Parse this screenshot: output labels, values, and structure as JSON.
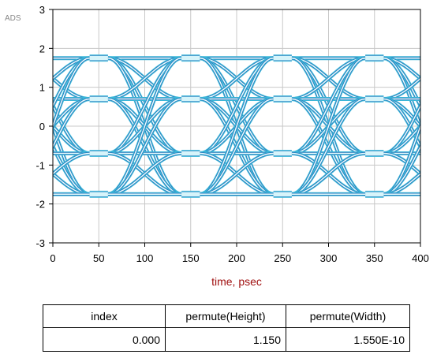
{
  "chart_data": {
    "type": "line",
    "title": "",
    "badge": "ADS",
    "xlabel": "time, psec",
    "ylabel": "",
    "xlim": [
      0,
      400
    ],
    "ylim": [
      -3,
      3
    ],
    "x_ticks": [
      "0",
      "50",
      "100",
      "150",
      "200",
      "250",
      "300",
      "350",
      "400"
    ],
    "y_ticks": [
      "3",
      "2",
      "1",
      "0",
      "-1",
      "-2",
      "-3"
    ],
    "grid": true,
    "legend": "none",
    "unit_interval_psec": 200,
    "crossing_times_psec": [
      0,
      100,
      200,
      300,
      400
    ],
    "eye_center_psec": [
      50,
      250
    ],
    "levels": [
      1.75,
      0.7,
      -0.7,
      -1.75
    ],
    "colors": {
      "trace": "#3ab7d8",
      "trace_dark": "#1a3aa0",
      "highlight": "#e8ffff",
      "grid": "#c8c8c8"
    }
  },
  "table": {
    "headers": [
      "index",
      "permute(Height)",
      "permute(Width)"
    ],
    "rows": [
      [
        "0.000",
        "1.150",
        "1.550E-10"
      ]
    ]
  }
}
